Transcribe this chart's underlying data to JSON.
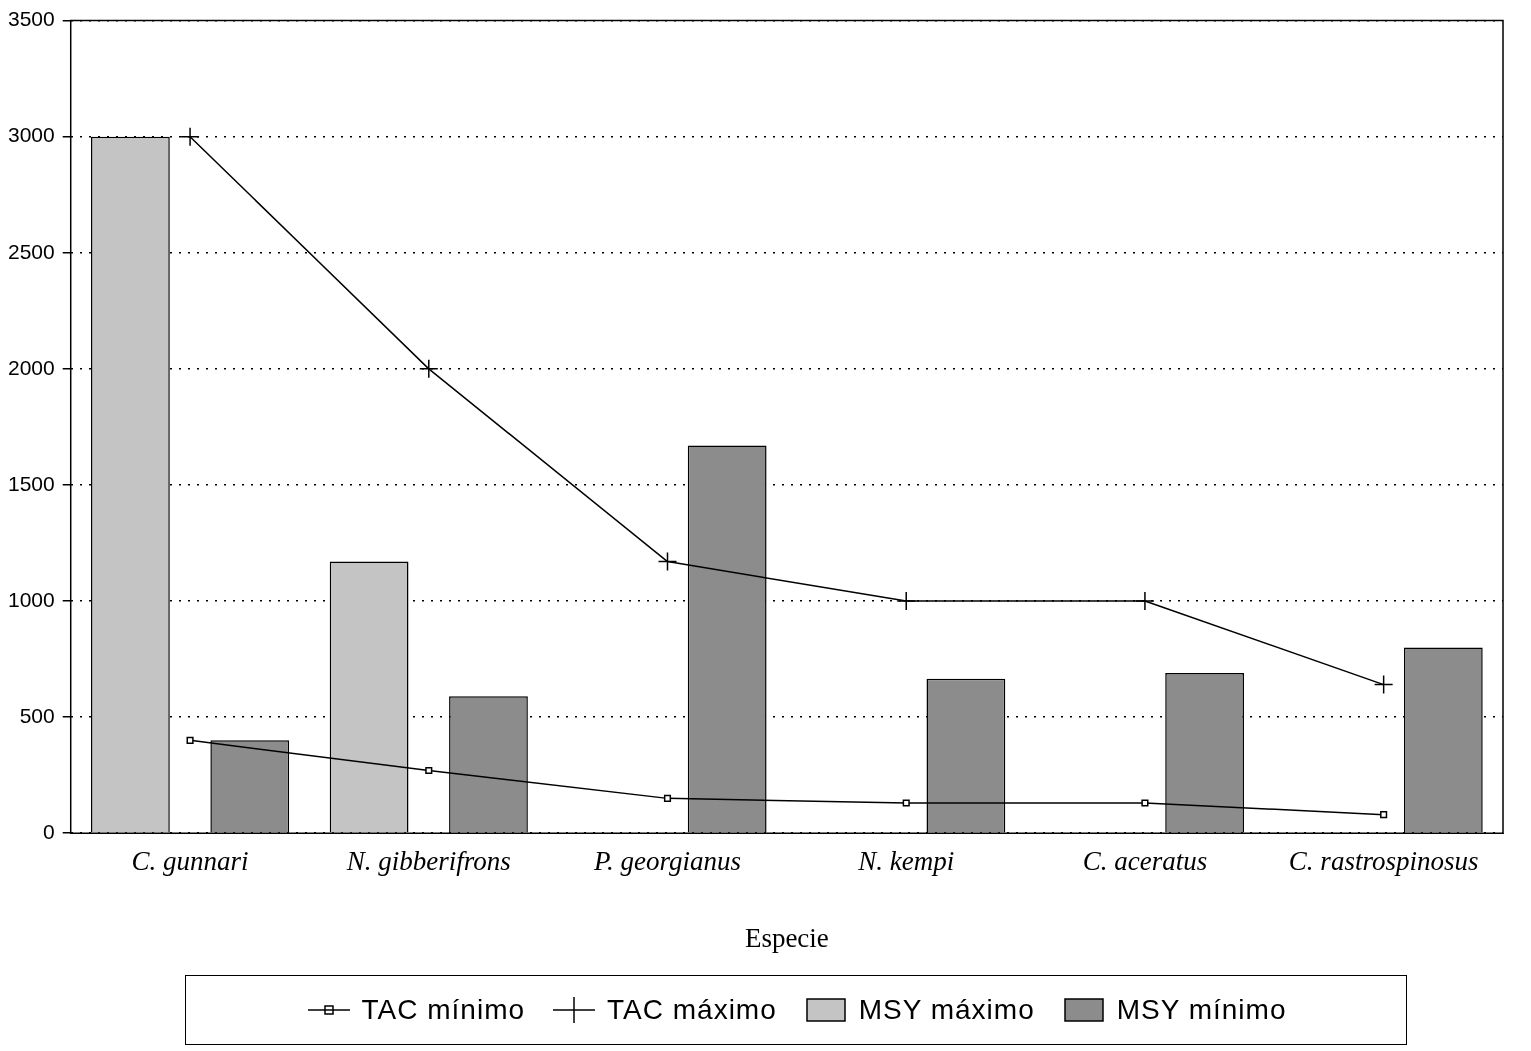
{
  "chart_data": {
    "type": "bar",
    "xlabel": "Especie",
    "categories": [
      "C. gunnari",
      "N. gibberifrons",
      "P. georgianus",
      "N. kempi",
      "C. aceratus",
      "C. rastrospinosus"
    ],
    "series": [
      {
        "name": "TAC mínimo",
        "type": "line",
        "color": "#000000",
        "marker": "square",
        "values": [
          400,
          270,
          150,
          130,
          130,
          80
        ]
      },
      {
        "name": "TAC máximo",
        "type": "line",
        "color": "#000000",
        "marker": "cross",
        "values": [
          3000,
          2000,
          1170,
          1000,
          1000,
          640
        ]
      },
      {
        "name": "MSY máximo",
        "color": "#c4c4c4",
        "values": [
          3000,
          1170,
          null,
          null,
          null,
          null
        ]
      },
      {
        "name": "MSY mínimo",
        "color": "#8c8c8c",
        "values": [
          400,
          590,
          1670,
          665,
          690,
          800
        ]
      }
    ],
    "ylim": [
      0,
      3500
    ],
    "yticks": [
      0,
      500,
      1000,
      1500,
      2000,
      2500,
      3000,
      3500
    ],
    "grid": "y",
    "legend": "bottom"
  }
}
